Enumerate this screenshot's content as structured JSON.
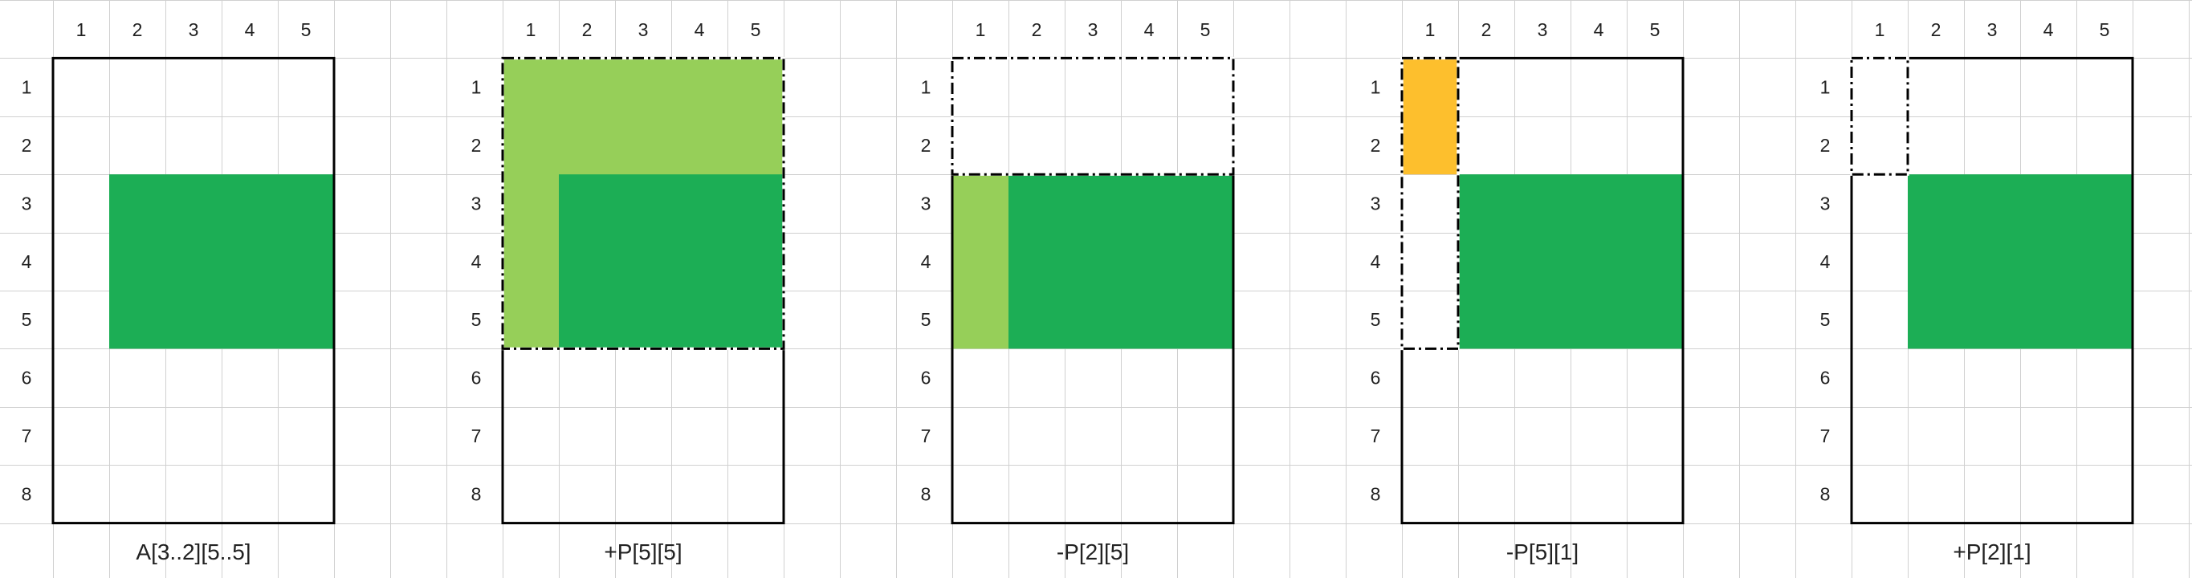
{
  "diagram": {
    "column_headers": [
      "1",
      "2",
      "3",
      "4",
      "5"
    ],
    "row_headers": [
      "1",
      "2",
      "3",
      "4",
      "5",
      "6",
      "7",
      "8"
    ],
    "colors": {
      "gridline": "#d0d0d0",
      "dark_green": "#1cae55",
      "light_green": "#96cf59",
      "orange": "#fdbf2d",
      "border": "#000000"
    },
    "panels": [
      {
        "caption": "A[3..2][5..5]",
        "fills": [
          {
            "color": "dark_green",
            "rows": [
              3,
              5
            ],
            "cols": [
              2,
              5
            ]
          }
        ],
        "dashed_region": null
      },
      {
        "caption": "+P[5][5]",
        "fills": [
          {
            "color": "light_green",
            "rows": [
              1,
              5
            ],
            "cols": [
              1,
              5
            ]
          },
          {
            "color": "dark_green",
            "rows": [
              3,
              5
            ],
            "cols": [
              2,
              5
            ]
          }
        ],
        "dashed_region": {
          "rows": [
            1,
            5
          ],
          "cols": [
            1,
            5
          ]
        }
      },
      {
        "caption": "-P[2][5]",
        "fills": [
          {
            "color": "light_green",
            "rows": [
              3,
              5
            ],
            "cols": [
              1,
              1
            ]
          },
          {
            "color": "dark_green",
            "rows": [
              3,
              5
            ],
            "cols": [
              2,
              5
            ]
          }
        ],
        "dashed_region": {
          "rows": [
            1,
            2
          ],
          "cols": [
            1,
            5
          ]
        }
      },
      {
        "caption": "-P[5][1]",
        "fills": [
          {
            "color": "orange",
            "rows": [
              1,
              2
            ],
            "cols": [
              1,
              1
            ]
          },
          {
            "color": "dark_green",
            "rows": [
              3,
              5
            ],
            "cols": [
              2,
              5
            ]
          }
        ],
        "dashed_region": {
          "rows": [
            1,
            5
          ],
          "cols": [
            1,
            1
          ]
        }
      },
      {
        "caption": "+P[2][1]",
        "fills": [
          {
            "color": "dark_green",
            "rows": [
              3,
              5
            ],
            "cols": [
              2,
              5
            ]
          }
        ],
        "dashed_region": {
          "rows": [
            1,
            2
          ],
          "cols": [
            1,
            1
          ]
        }
      }
    ]
  }
}
